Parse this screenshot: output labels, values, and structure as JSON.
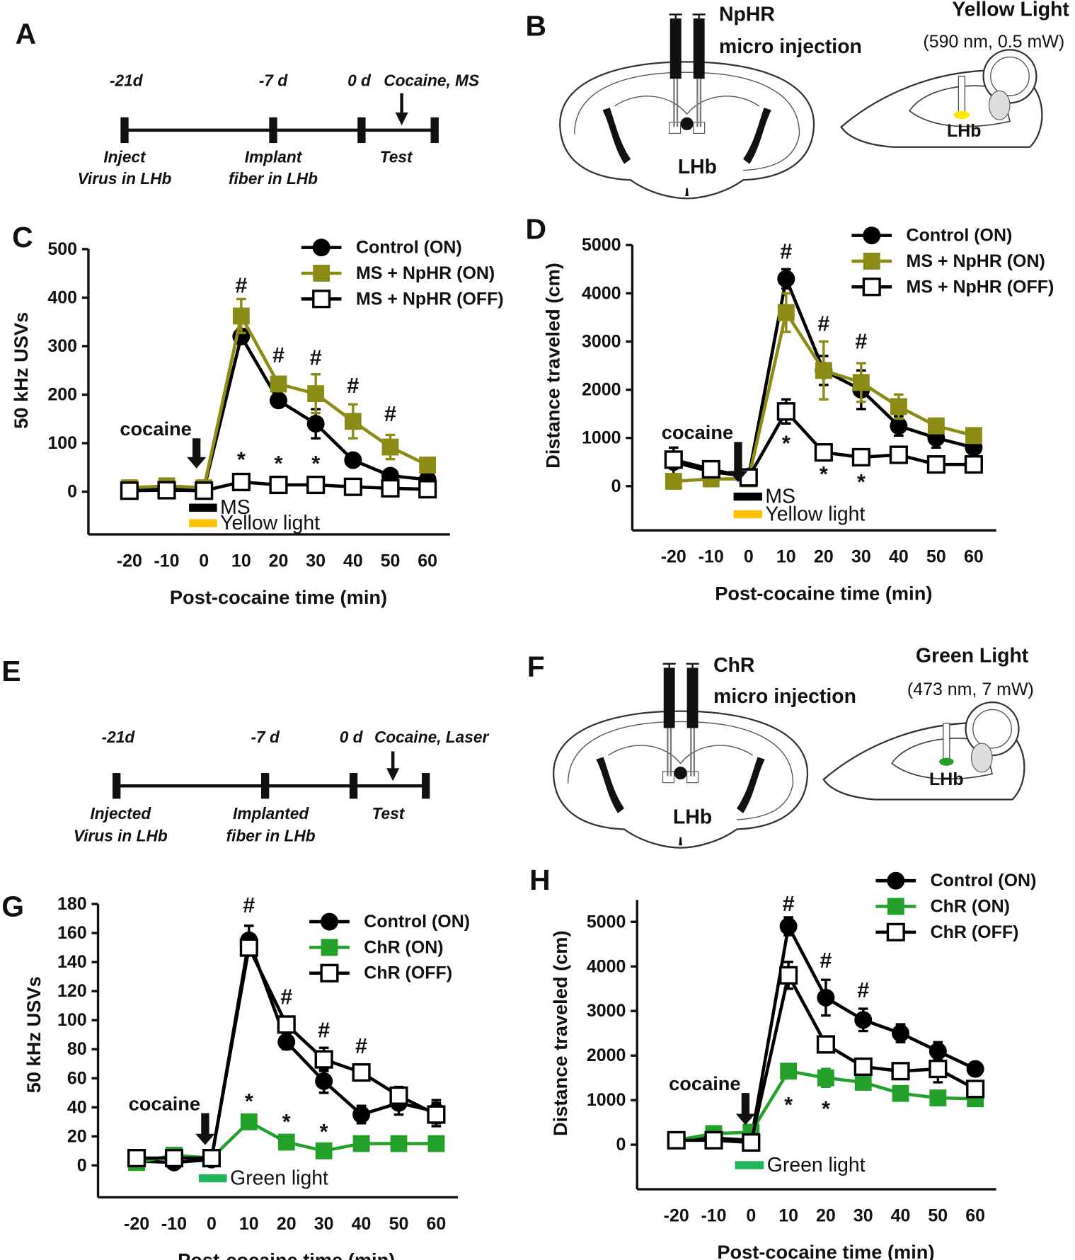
{
  "timelines": [
    {
      "panel": "A",
      "top_labels": [
        "-21d",
        "-7 d",
        "0 d",
        "Cocaine, MS"
      ],
      "bottom_labels": [
        [
          "Inject",
          "Virus in LHb"
        ],
        [
          "Implant",
          "fiber in LHb"
        ],
        [
          "Test"
        ]
      ]
    },
    {
      "panel": "E",
      "top_labels": [
        "-21d",
        "-7 d",
        "0 d",
        "Cocaine, Laser"
      ],
      "bottom_labels": [
        [
          "Injected",
          "Virus in LHb"
        ],
        [
          "Implanted",
          "fiber in LHb"
        ],
        [
          "Test"
        ]
      ]
    }
  ],
  "diagrams": [
    {
      "panel": "B",
      "construct": "NpHR",
      "method": "micro injection",
      "region": "LHb",
      "light": "Yellow Light",
      "light_spec": "(590 nm, 0.5 mW)",
      "target": "LHb"
    },
    {
      "panel": "F",
      "construct": "ChR",
      "method": "micro injection",
      "region": "LHb",
      "light": "Green Light",
      "light_spec": "(473 nm, 7 mW)",
      "target": "LHb"
    }
  ],
  "chart_data": [
    {
      "panel": "C",
      "type": "line",
      "xlabel": "Post-cocaine time (min)",
      "ylabel": "50 kHz USVs",
      "x": [
        -20,
        -10,
        0,
        10,
        20,
        30,
        40,
        50,
        60
      ],
      "xlim": [
        -31,
        66
      ],
      "xticks": [
        -20,
        -10,
        0,
        10,
        20,
        30,
        40,
        50,
        60
      ],
      "ylim": [
        -88,
        500
      ],
      "yticks": [
        0,
        100,
        200,
        300,
        400,
        500
      ],
      "series": [
        {
          "name": "Control (ON)",
          "color": "#000000",
          "marker": "circle",
          "values": [
            5,
            8,
            5,
            320,
            188,
            140,
            65,
            33,
            25
          ],
          "errors": [
            3,
            3,
            3,
            15,
            12,
            30,
            5,
            10,
            5
          ]
        },
        {
          "name": "MS + NpHR  (ON)",
          "color": "#8b8b16",
          "marker": "square",
          "values": [
            8,
            12,
            8,
            362,
            222,
            202,
            145,
            92,
            55
          ],
          "errors": [
            5,
            5,
            5,
            35,
            15,
            40,
            35,
            25,
            10
          ]
        },
        {
          "name": "MS + NpHR  (OFF)",
          "color": "#000000",
          "marker": "open-square",
          "values": [
            2,
            3,
            2,
            20,
            14,
            14,
            10,
            7,
            5
          ],
          "errors": [
            3,
            3,
            3,
            8,
            5,
            5,
            5,
            5,
            5
          ]
        }
      ],
      "annotations": [
        {
          "text": "#",
          "x": 10,
          "y": 425
        },
        {
          "text": "#",
          "x": 20,
          "y": 281
        },
        {
          "text": "#",
          "x": 30,
          "y": 276
        },
        {
          "text": "#",
          "x": 40,
          "y": 218
        },
        {
          "text": "#",
          "x": 50,
          "y": 160
        },
        {
          "text": "*",
          "x": 10,
          "y": 66
        },
        {
          "text": "*",
          "x": 20,
          "y": 58
        },
        {
          "text": "*",
          "x": 30,
          "y": 58
        }
      ],
      "cocaine": {
        "label": "cocaine",
        "x": -2,
        "y": [
          48,
          110
        ]
      },
      "bars": [
        {
          "label": "MS",
          "color": "#000000",
          "x": [
            -4,
            3.5
          ],
          "y": -33
        },
        {
          "label": "Yellow light",
          "color": "#ffc000",
          "x": [
            -4,
            3.5
          ],
          "y": -65
        }
      ]
    },
    {
      "panel": "D",
      "type": "line",
      "xlabel": "Post-cocaine time (min)",
      "ylabel": "Distance traveled (cm)",
      "x": [
        -20,
        -10,
        0,
        10,
        20,
        30,
        40,
        50,
        60
      ],
      "xlim": [
        -31,
        66
      ],
      "xticks": [
        -20,
        -10,
        0,
        10,
        20,
        30,
        40,
        50,
        60
      ],
      "ylim": [
        -917,
        5000
      ],
      "yticks": [
        0,
        1000,
        2000,
        3000,
        4000,
        5000
      ],
      "series": [
        {
          "name": "Control (ON)",
          "color": "#000000",
          "marker": "circle",
          "values": [
            500,
            300,
            200,
            4300,
            2400,
            2000,
            1250,
            1000,
            800
          ],
          "errors": [
            300,
            100,
            50,
            200,
            300,
            400,
            200,
            200,
            100
          ]
        },
        {
          "name": "MS + NpHR  (ON)",
          "color": "#8b8b16",
          "marker": "square",
          "values": [
            100,
            150,
            150,
            3600,
            2400,
            2150,
            1650,
            1250,
            1050
          ],
          "errors": [
            100,
            80,
            80,
            400,
            600,
            400,
            250,
            150,
            150
          ]
        },
        {
          "name": "MS + NpHR  (OFF)",
          "color": "#000000",
          "marker": "open-square",
          "values": [
            550,
            350,
            180,
            1550,
            700,
            600,
            650,
            450,
            450
          ],
          "errors": [
            100,
            50,
            50,
            250,
            80,
            100,
            80,
            80,
            80
          ]
        }
      ],
      "annotations": [
        {
          "text": "#",
          "x": 10,
          "y": 4867
        },
        {
          "text": "#",
          "x": 20,
          "y": 3367
        },
        {
          "text": "#",
          "x": 30,
          "y": 3000
        },
        {
          "text": "*",
          "x": 10,
          "y": 883
        },
        {
          "text": "*",
          "x": 20,
          "y": 250
        },
        {
          "text": "*",
          "x": 30,
          "y": 83
        }
      ],
      "cocaine": {
        "label": "cocaine",
        "x": -2.8,
        "y": [
          83,
          917
        ]
      },
      "bars": [
        {
          "label": "MS",
          "color": "#000000",
          "x": [
            -4,
            3.6
          ],
          "y": -217
        },
        {
          "label": "Yellow light",
          "color": "#ffc000",
          "x": [
            -4,
            3.6
          ],
          "y": -583
        }
      ]
    },
    {
      "panel": "G",
      "type": "line",
      "xlabel": "Post-cocaine time (min)",
      "ylabel": "50 kHz USVs",
      "x": [
        -20,
        -10,
        0,
        10,
        20,
        30,
        40,
        50,
        60
      ],
      "xlim": [
        -30.3,
        65.8
      ],
      "xticks": [
        -20,
        -10,
        0,
        10,
        20,
        30,
        40,
        50,
        60
      ],
      "ylim": [
        -22,
        180
      ],
      "yticks": [
        0,
        20,
        40,
        60,
        80,
        100,
        120,
        140,
        160,
        180
      ],
      "series": [
        {
          "name": "Control (ON)",
          "color": "#000000",
          "marker": "circle",
          "values": [
            3,
            2,
            4,
            155,
            85,
            58,
            35,
            43,
            37
          ],
          "errors": [
            2,
            2,
            2,
            10,
            5,
            8,
            6,
            8,
            8
          ]
        },
        {
          "name": "ChR (ON)",
          "color": "#23a12b",
          "marker": "square",
          "values": [
            2,
            7,
            5,
            30,
            16,
            10,
            15,
            15,
            15
          ],
          "errors": [
            3,
            3,
            3,
            5,
            4,
            4,
            3,
            3,
            3
          ]
        },
        {
          "name": "ChR (OFF)",
          "color": "#000000",
          "marker": "open-square",
          "values": [
            5,
            5,
            5,
            150,
            97,
            73,
            64,
            48,
            35
          ],
          "errors": [
            3,
            3,
            3,
            5,
            5,
            8,
            5,
            6,
            8
          ]
        }
      ],
      "annotations": [
        {
          "text": "#",
          "x": 10,
          "y": 179
        },
        {
          "text": "#",
          "x": 20,
          "y": 116
        },
        {
          "text": "#",
          "x": 30,
          "y": 93
        },
        {
          "text": "#",
          "x": 40,
          "y": 82
        },
        {
          "text": "*",
          "x": 10,
          "y": 44
        },
        {
          "text": "*",
          "x": 20,
          "y": 30
        },
        {
          "text": "*",
          "x": 30,
          "y": 23
        }
      ],
      "cocaine": {
        "label": "cocaine",
        "x": -1.7,
        "y": [
          14,
          36
        ]
      },
      "bars": [
        {
          "label": "Green light",
          "color": "#1fb55a",
          "x": [
            -3.4,
            4.1
          ],
          "y": -8.9
        }
      ]
    },
    {
      "panel": "H",
      "type": "line",
      "xlabel": "Post-cocaine time (min)",
      "ylabel": "Distance traveled (cm)",
      "x": [
        -20,
        -10,
        0,
        10,
        20,
        30,
        40,
        50,
        60
      ],
      "xlim": [
        -30.5,
        65.6
      ],
      "xticks": [
        -20,
        -10,
        0,
        10,
        20,
        30,
        40,
        50,
        60
      ],
      "ylim": [
        -1000,
        5490
      ],
      "yticks": [
        0,
        1000,
        2000,
        3000,
        4000,
        5000
      ],
      "series": [
        {
          "name": "Control (ON)",
          "color": "#000000",
          "marker": "circle",
          "values": [
            100,
            150,
            100,
            4900,
            3300,
            2800,
            2500,
            2100,
            1700
          ],
          "errors": [
            100,
            100,
            100,
            200,
            400,
            250,
            200,
            200,
            100
          ]
        },
        {
          "name": "ChR (ON)",
          "color": "#23a12b",
          "marker": "square",
          "values": [
            100,
            250,
            280,
            1650,
            1500,
            1400,
            1150,
            1050,
            1030
          ],
          "errors": [
            100,
            100,
            100,
            150,
            200,
            150,
            150,
            100,
            80
          ]
        },
        {
          "name": "ChR (OFF)",
          "color": "#000000",
          "marker": "open-square",
          "values": [
            100,
            100,
            50,
            3800,
            2250,
            1750,
            1650,
            1700,
            1250
          ],
          "errors": [
            100,
            100,
            100,
            300,
            150,
            100,
            100,
            300,
            150
          ]
        }
      ],
      "annotations": [
        {
          "text": "#",
          "x": 10,
          "y": 5400
        },
        {
          "text": "#",
          "x": 20,
          "y": 4135
        },
        {
          "text": "#",
          "x": 30,
          "y": 3468
        },
        {
          "text": "*",
          "x": 10,
          "y": 892
        },
        {
          "text": "*",
          "x": 20,
          "y": 802
        }
      ],
      "cocaine": {
        "label": "cocaine",
        "x": -1.5,
        "y": [
          441,
          1160
        ]
      },
      "bars": [
        {
          "label": "Green light",
          "color": "#1fb55a",
          "x": [
            -4.3,
            3.4
          ],
          "y": -459
        }
      ]
    }
  ]
}
